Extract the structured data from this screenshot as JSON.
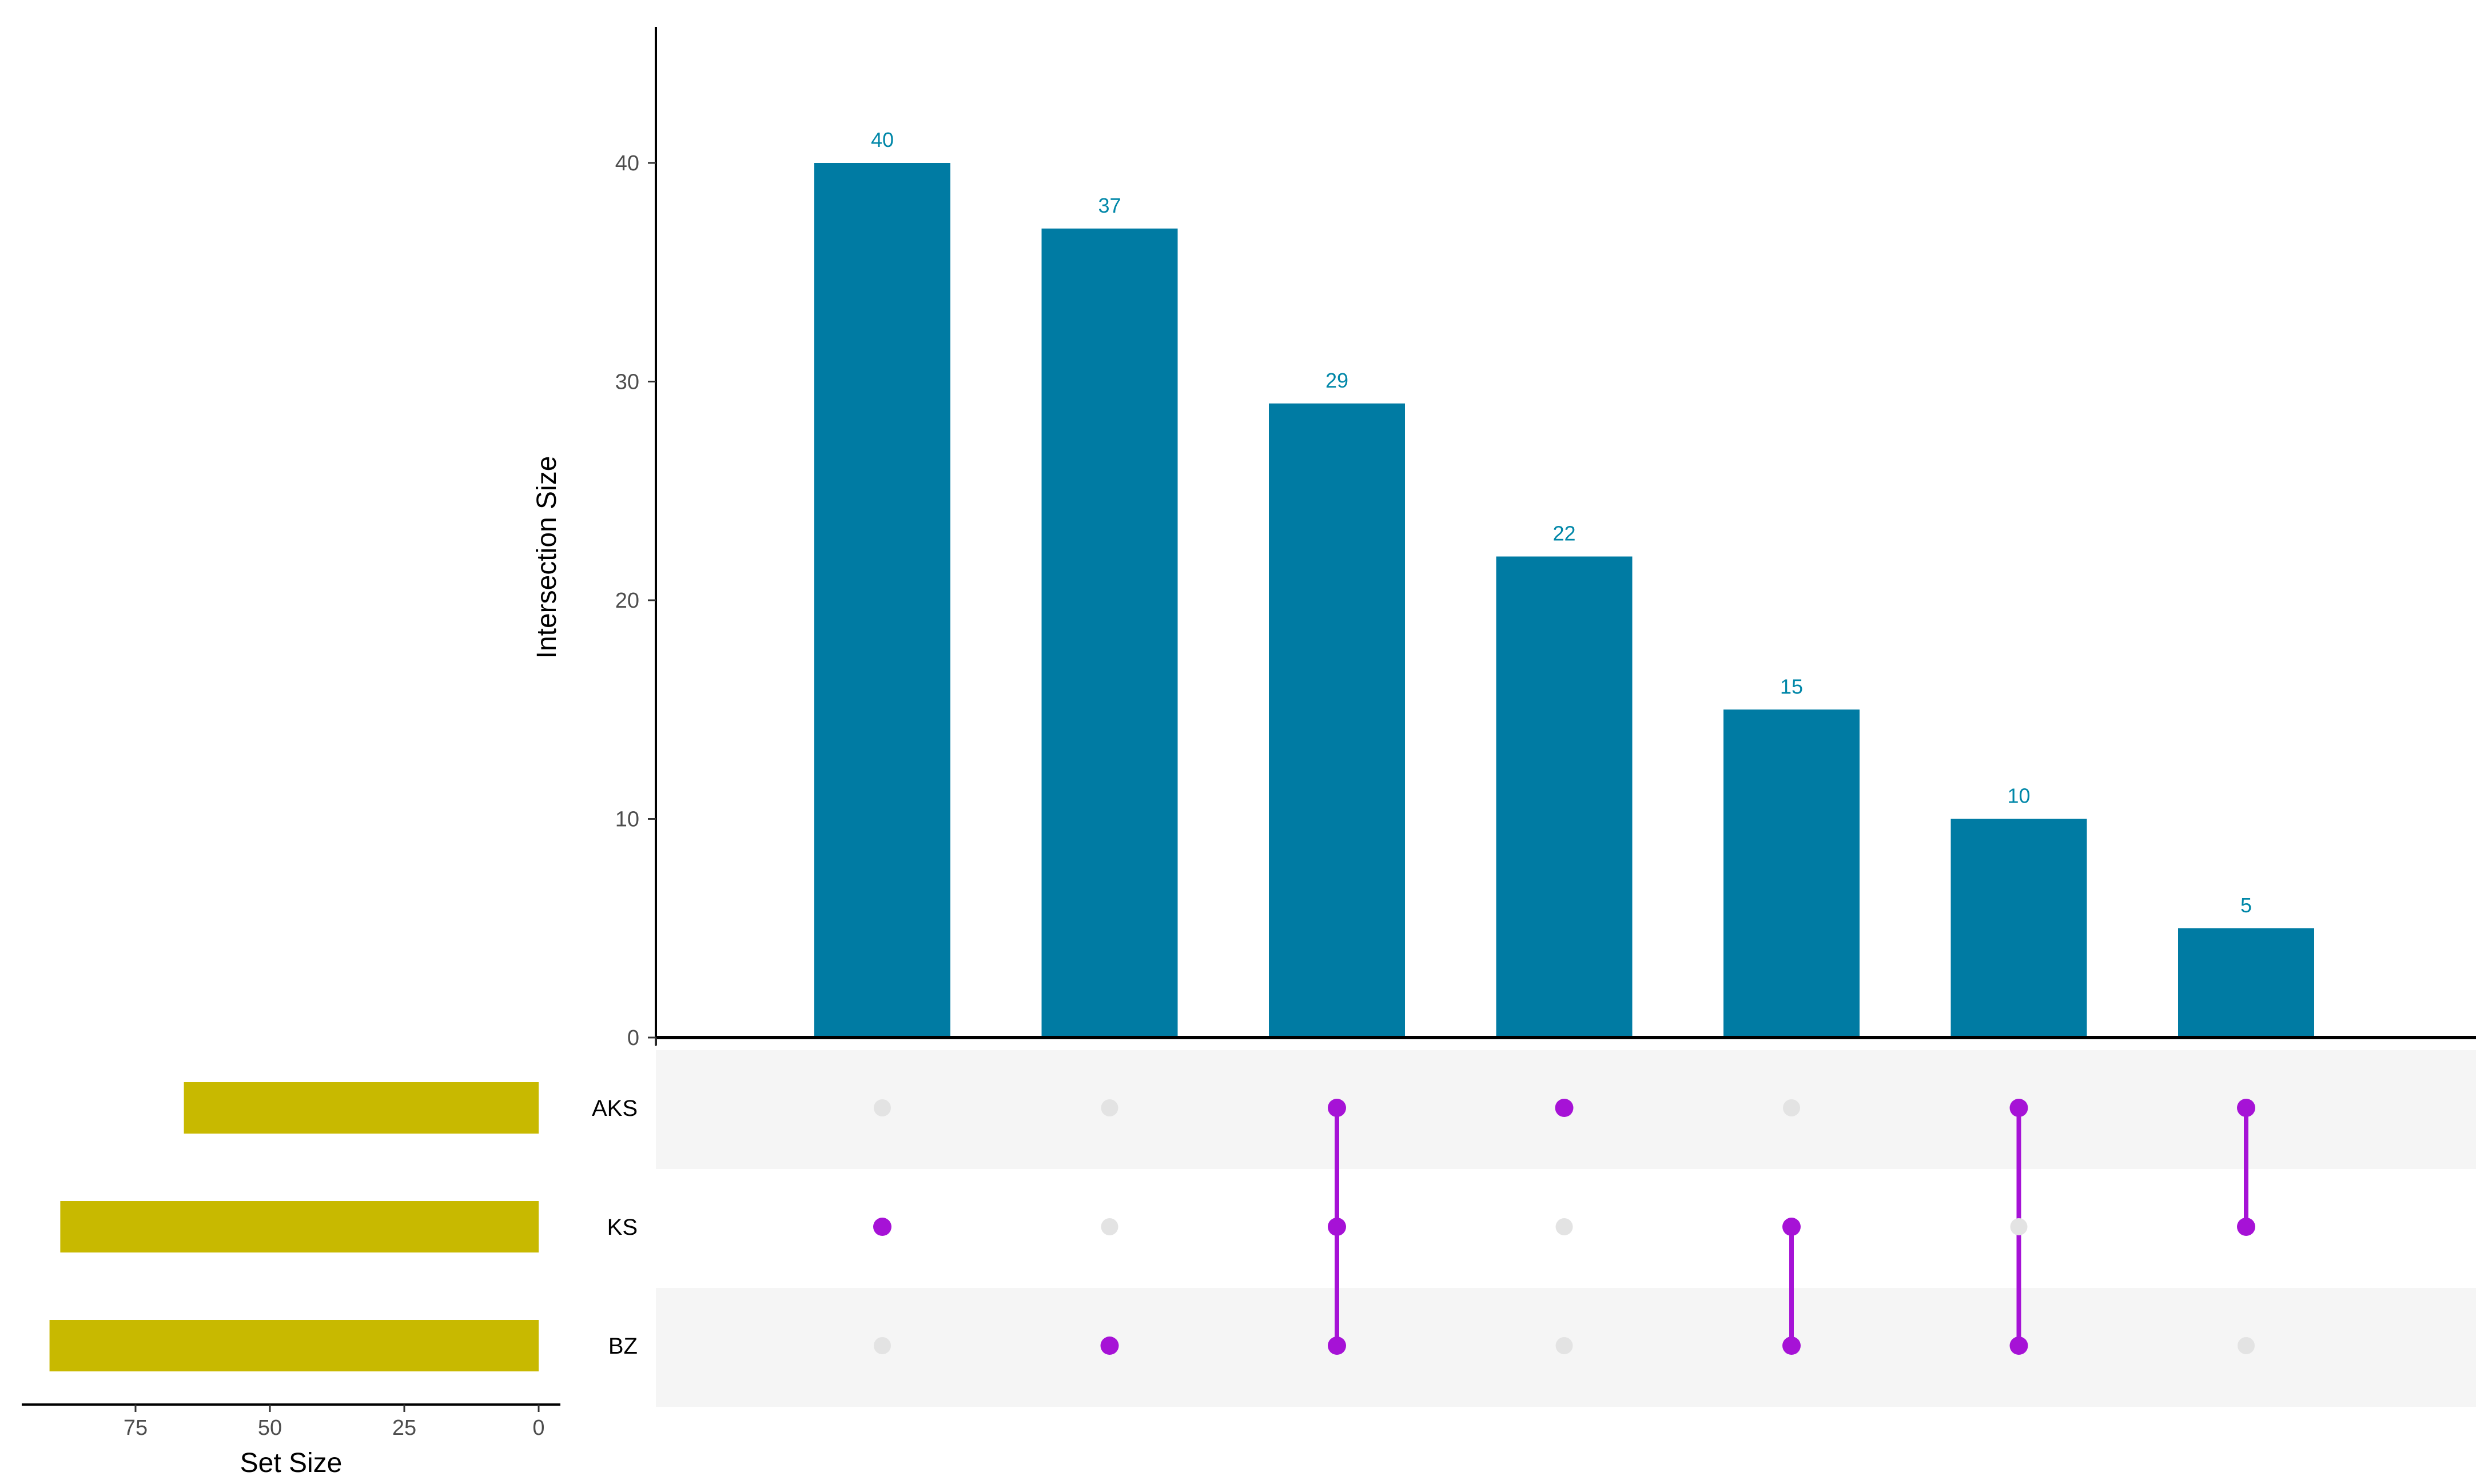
{
  "chart_data": {
    "type": "bar",
    "subtype": "upset",
    "intersections": [
      {
        "sets": [
          "KS"
        ],
        "value": 40
      },
      {
        "sets": [
          "BZ"
        ],
        "value": 37
      },
      {
        "sets": [
          "AKS",
          "KS",
          "BZ"
        ],
        "value": 29
      },
      {
        "sets": [
          "AKS"
        ],
        "value": 22
      },
      {
        "sets": [
          "KS",
          "BZ"
        ],
        "value": 15
      },
      {
        "sets": [
          "AKS",
          "BZ"
        ],
        "value": 10
      },
      {
        "sets": [
          "AKS",
          "KS"
        ],
        "value": 5
      }
    ],
    "values": [
      40,
      37,
      29,
      22,
      15,
      10,
      5
    ],
    "sets": [
      {
        "name": "AKS",
        "size": 66
      },
      {
        "name": "KS",
        "size": 89
      },
      {
        "name": "BZ",
        "size": 91
      }
    ],
    "ylabel": "Intersection Size",
    "ylim": [
      0,
      46
    ],
    "yticks": [
      0,
      10,
      20,
      30,
      40
    ],
    "set_size_label": "Set Size",
    "set_size_lim": [
      0,
      95
    ],
    "set_size_ticks": [
      75,
      50,
      25,
      0
    ],
    "colors": {
      "bar": "#007BA3",
      "bar_label": "#0087A8",
      "set_bar": "#C8B900",
      "dot_active": "#A612D6",
      "dot_inactive": "#E3E3E3",
      "stripe": "#F5F5F5"
    },
    "grid": false
  }
}
